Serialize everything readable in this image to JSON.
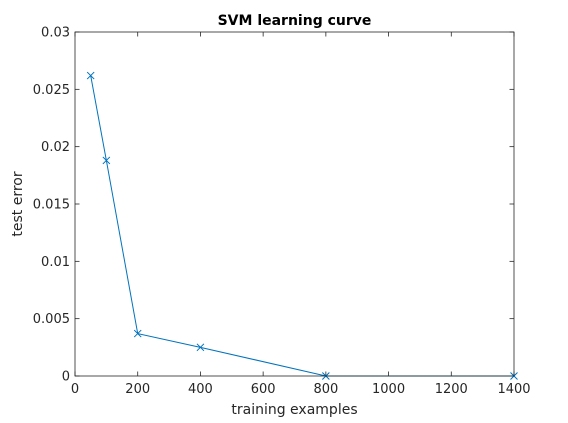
{
  "chart_data": {
    "type": "line",
    "title": "SVM learning curve",
    "xlabel": "training examples",
    "ylabel": "test error",
    "xlim": [
      0,
      1400
    ],
    "ylim": [
      0,
      0.03
    ],
    "xticks": [
      0,
      200,
      400,
      600,
      800,
      1000,
      1200,
      1400
    ],
    "xtick_labels": [
      "0",
      "200",
      "400",
      "600",
      "800",
      "1000",
      "1200",
      "1400"
    ],
    "yticks": [
      0,
      0.005,
      0.01,
      0.015,
      0.02,
      0.025,
      0.03
    ],
    "ytick_labels": [
      "0",
      "0.005",
      "0.01",
      "0.015",
      "0.02",
      "0.025",
      "0.03"
    ],
    "grid": false,
    "box": true,
    "series": [
      {
        "x": [
          50,
          100,
          200,
          400,
          800,
          1400
        ],
        "y": [
          0.0262,
          0.0188,
          0.0037,
          0.0025,
          0.0,
          0.0
        ],
        "color": "#0072BD",
        "marker": "x"
      }
    ]
  }
}
